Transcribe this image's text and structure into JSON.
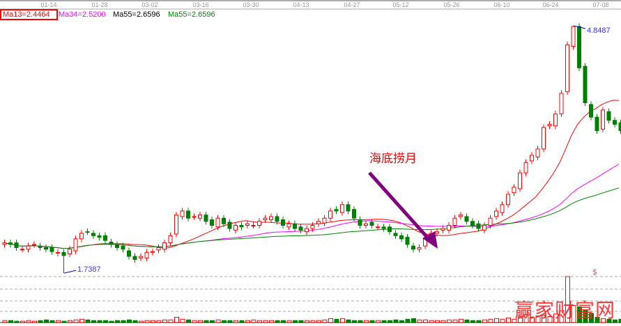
{
  "chart_data": {
    "type": "candlestick",
    "x_tick_labels": [
      "01-14",
      "01-28",
      "03-02",
      "03-16",
      "03-30",
      "04-13",
      "04-27",
      "05-12",
      "05-26",
      "06-10",
      "06-24",
      "07-08"
    ],
    "legend": [
      {
        "label": "Ma13=2.4464",
        "color": "#ff0000"
      },
      {
        "label": "Ma34=2.5200",
        "color": "#ff00ff"
      },
      {
        "label": "Ma55=2.6596",
        "color": "#000000"
      },
      {
        "label": "Ma55=2.6596",
        "color": "#008000"
      }
    ],
    "high_label": "4.8487",
    "low_label": "1.7387",
    "annotation": "海底捞月",
    "up_color": "#ff0000",
    "down_color": "#008000",
    "arrow_color": "#800080",
    "close_pixels_note": "",
    "closes": [
      2.12,
      2.1,
      2.06,
      2.04,
      2.08,
      2.1,
      2.06,
      2.04,
      2.01,
      2.0,
      1.96,
      2.04,
      2.17,
      2.24,
      2.26,
      2.21,
      2.19,
      2.15,
      2.1,
      2.06,
      2.04,
      1.95,
      1.91,
      1.95,
      2.0,
      2.01,
      2.06,
      2.12,
      2.21,
      2.47,
      2.52,
      2.43,
      2.45,
      2.47,
      2.39,
      2.34,
      2.43,
      2.36,
      2.3,
      2.34,
      2.32,
      2.36,
      2.34,
      2.39,
      2.43,
      2.45,
      2.39,
      2.34,
      2.36,
      2.3,
      2.28,
      2.3,
      2.34,
      2.39,
      2.43,
      2.52,
      2.52,
      2.6,
      2.52,
      2.43,
      2.34,
      2.36,
      2.34,
      2.32,
      2.3,
      2.26,
      2.21,
      2.17,
      2.1,
      2.04,
      2.06,
      2.17,
      2.24,
      2.26,
      2.3,
      2.34,
      2.43,
      2.47,
      2.39,
      2.34,
      2.3,
      2.34,
      2.43,
      2.52,
      2.6,
      2.73,
      2.82,
      3.0,
      3.13,
      3.22,
      3.3,
      3.57,
      3.61,
      3.74,
      4.0,
      4.61,
      4.84,
      4.32,
      3.88,
      3.7,
      3.53,
      3.79,
      3.66,
      3.61,
      3.53
    ],
    "volumes": [
      3,
      3,
      2,
      2,
      3,
      2,
      3,
      4,
      3,
      3,
      2,
      3,
      4,
      5,
      4,
      3,
      3,
      3,
      2,
      3,
      3,
      4,
      3,
      2,
      3,
      3,
      3,
      4,
      4,
      8,
      5,
      4,
      3,
      3,
      3,
      3,
      4,
      3,
      3,
      3,
      3,
      3,
      4,
      3,
      3,
      3,
      3,
      3,
      3,
      3,
      3,
      3,
      3,
      3,
      4,
      6,
      5,
      6,
      4,
      3,
      3,
      3,
      3,
      3,
      3,
      3,
      4,
      3,
      5,
      6,
      4,
      4,
      3,
      3,
      3,
      4,
      4,
      5,
      4,
      3,
      3,
      4,
      5,
      6,
      5,
      7,
      5,
      9,
      12,
      8,
      10,
      11,
      9,
      13,
      18,
      70,
      26,
      24,
      18,
      14,
      8,
      6,
      5,
      4,
      5
    ],
    "ylim": [
      1.2,
      5.0
    ]
  }
}
